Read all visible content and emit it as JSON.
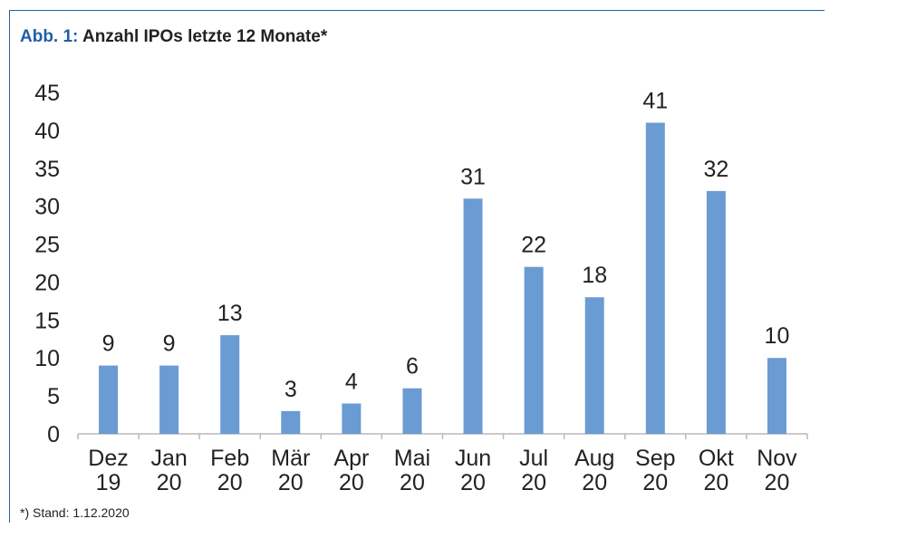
{
  "header": {
    "figure_label": "Abb. 1:",
    "title": "Anzahl IPOs letzte 12 Monate*"
  },
  "footnote": "*) Stand: 1.12.2020",
  "colors": {
    "accent": "#1f5fa7",
    "bar": "#6a9bd3"
  },
  "chart_data": {
    "type": "bar",
    "title": "Anzahl IPOs letzte 12 Monate*",
    "categories": [
      [
        "Dez",
        "19"
      ],
      [
        "Jan",
        "20"
      ],
      [
        "Feb",
        "20"
      ],
      [
        "Mär",
        "20"
      ],
      [
        "Apr",
        "20"
      ],
      [
        "Mai",
        "20"
      ],
      [
        "Jun",
        "20"
      ],
      [
        "Jul",
        "20"
      ],
      [
        "Aug",
        "20"
      ],
      [
        "Sep",
        "20"
      ],
      [
        "Okt",
        "20"
      ],
      [
        "Nov",
        "20"
      ]
    ],
    "values": [
      9,
      9,
      13,
      3,
      4,
      6,
      31,
      22,
      18,
      41,
      32,
      10
    ],
    "ylim": [
      0,
      45
    ],
    "yticks": [
      0,
      5,
      10,
      15,
      20,
      25,
      30,
      35,
      40,
      45
    ],
    "xlabel": "",
    "ylabel": "",
    "data_labels": true,
    "grid": false,
    "legend": "none"
  }
}
